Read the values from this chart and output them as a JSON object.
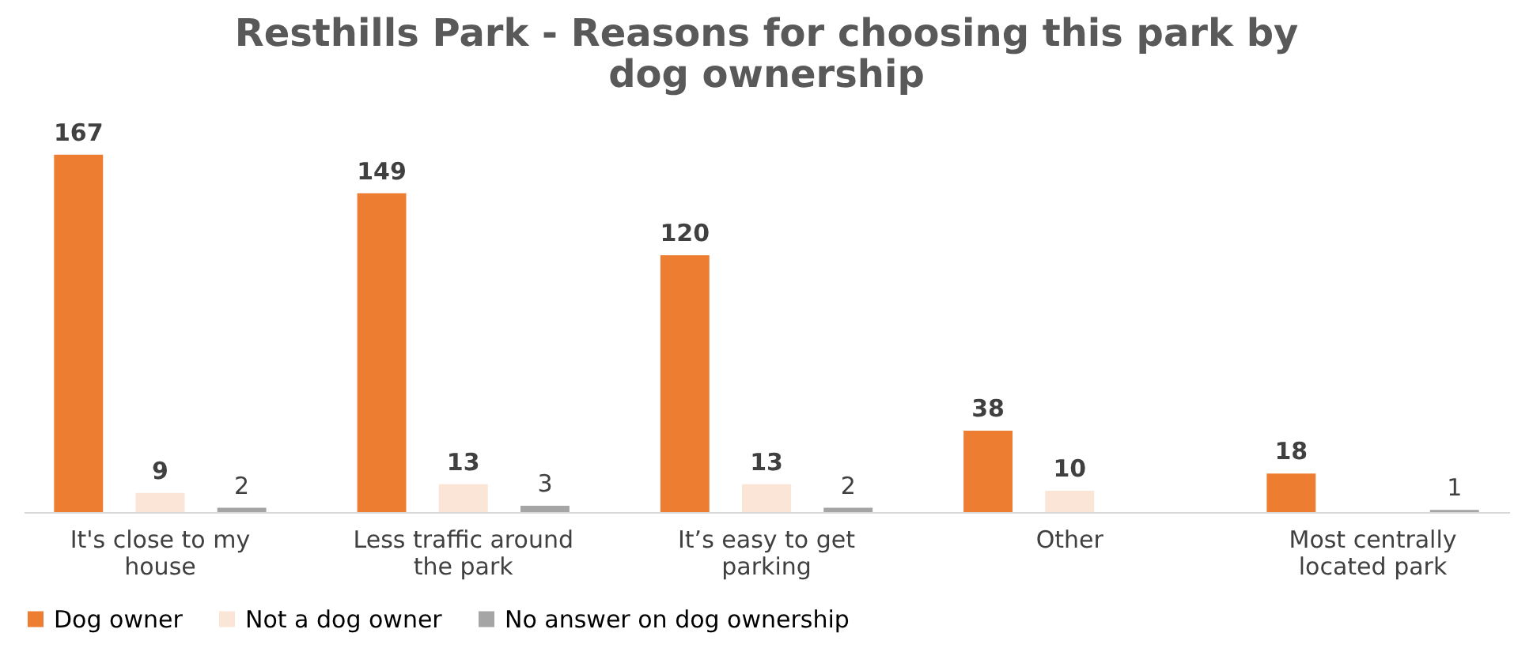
{
  "chart_data": {
    "type": "bar",
    "title": "Resthills Park - Reasons for choosing this park by dog ownership",
    "categories": [
      "It's close to my house",
      "Less traffic around the park",
      "It’s easy to get parking",
      "Other",
      "Most centrally located park"
    ],
    "series": [
      {
        "name": "Dog owner",
        "color": "#ed7d31",
        "values": [
          167,
          149,
          120,
          38,
          18
        ]
      },
      {
        "name": "Not a dog owner",
        "color": "#fbe5d6",
        "values": [
          9,
          13,
          13,
          10,
          null
        ]
      },
      {
        "name": "No answer on dog ownership",
        "color": "#a5a5a5",
        "values": [
          2,
          3,
          2,
          null,
          1
        ]
      }
    ],
    "data_labels": true,
    "legend": "bottom",
    "grid": false
  }
}
